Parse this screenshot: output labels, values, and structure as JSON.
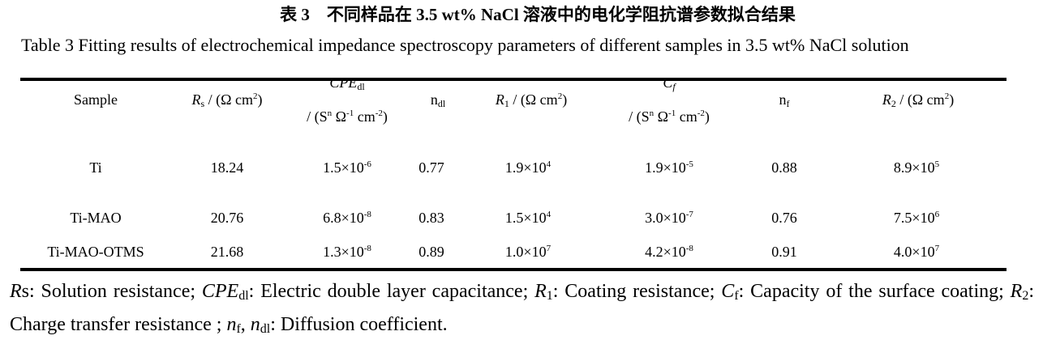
{
  "title_cn": "表 3　不同样品在 3.5 wt% NaCl 溶液中的电化学阻抗谱参数拟合结果",
  "title_en": "Table 3    Fitting results of electrochemical impedance spectroscopy parameters of different samples in 3.5 wt% NaCl solution",
  "headers": {
    "sample": "Sample",
    "rs_sym": "R",
    "rs_sub": "s",
    "rs_unit": " / (Ω cm",
    "rs_exp": "2",
    "rs_close": ")",
    "cpe_sym": "CPE",
    "cpe_sub": "dl",
    "cpe_unit_a": "/ (S",
    "cpe_unit_n": "n",
    "cpe_unit_b": " Ω",
    "cpe_unit_m1": "-1",
    "cpe_unit_c": " cm",
    "cpe_unit_m2": "-2",
    "cpe_unit_d": ")",
    "ndl": "n",
    "ndl_sub": "dl",
    "r1_sym": "R",
    "r1_sub": "1",
    "r1_unit": " / (Ω cm",
    "r1_exp": "2",
    "r1_close": ")",
    "cf_sym": "C",
    "cf_sub": "f",
    "nf": "n",
    "nf_sub": "f",
    "r2_sym": "R",
    "r2_sub": "2",
    "r2_unit": " / (Ω cm",
    "r2_exp": "2",
    "r2_close": ")"
  },
  "rows": [
    {
      "sample": "Ti",
      "rs": "18.24",
      "cpe": "1.5×10",
      "cpe_exp": "-6",
      "ndl": "0.77",
      "r1": "1.9×10",
      "r1_exp": "4",
      "cf": "1.9×10",
      "cf_exp": "-5",
      "nf": "0.88",
      "r2": "8.9×10",
      "r2_exp": "5"
    },
    {
      "sample": "Ti-MAO",
      "rs": "20.76",
      "cpe": "6.8×10",
      "cpe_exp": "-8",
      "ndl": "0.83",
      "r1": "1.5×10",
      "r1_exp": "4",
      "cf": "3.0×10",
      "cf_exp": "-7",
      "nf": "0.76",
      "r2": "7.5×10",
      "r2_exp": "6"
    },
    {
      "sample": "Ti-MAO-OTMS",
      "rs": "21.68",
      "cpe": "1.3×10",
      "cpe_exp": "-8",
      "ndl": "0.89",
      "r1": "1.0×10",
      "r1_exp": "7",
      "cf": "4.2×10",
      "cf_exp": "-8",
      "nf": "0.91",
      "r2": "4.0×10",
      "r2_exp": "7"
    }
  ],
  "footnote": {
    "rs_a": "R",
    "rs_b": "s: Solution resistance; ",
    "cpe": "CPE",
    "cpe_sub": "dl",
    "cpe_text": ": Electric double layer capacitance; ",
    "r1": "R",
    "r1_sub": "1",
    "r1_text": ": Coating resistance; ",
    "cf": "C",
    "cf_sub": "f",
    "cf_text": ": Capacity of the surface coating; ",
    "r2": "R",
    "r2_sub": "2",
    "r2_text": ": Charge transfer resistance ; ",
    "nf": "n",
    "nf_sub": "f",
    "comma": ", ",
    "ndl": "n",
    "ndl_sub": "dl",
    "n_text": ": Diffusion coefficient."
  }
}
